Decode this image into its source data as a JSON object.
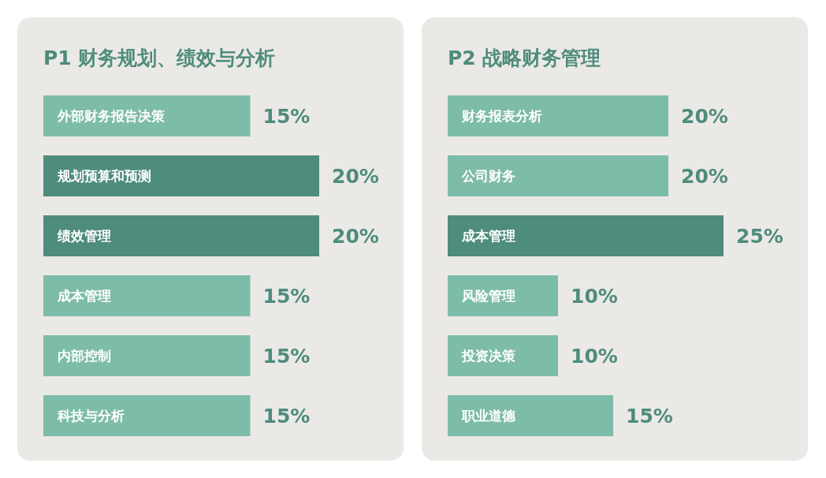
{
  "chart_data": [
    {
      "type": "bar",
      "orientation": "horizontal",
      "title": "P1 财务规划、绩效与分析",
      "categories": [
        "外部财务报告决策",
        "规划预算和预测",
        "绩效管理",
        "成本管理",
        "内部控制",
        "科技与分析"
      ],
      "values": [
        15,
        20,
        20,
        15,
        15,
        15
      ],
      "value_labels": [
        "15%",
        "20%",
        "20%",
        "15%",
        "15%",
        "15%"
      ],
      "colors": [
        "#7dbca8",
        "#4e8c7c",
        "#4e8c7c",
        "#7dbca8",
        "#7dbca8",
        "#7dbca8"
      ]
    },
    {
      "type": "bar",
      "orientation": "horizontal",
      "title": "P2 战略财务管理",
      "categories": [
        "财务报表分析",
        "公司财务",
        "成本管理",
        "风险管理",
        "投资决策",
        "职业道德"
      ],
      "values": [
        20,
        20,
        25,
        10,
        10,
        15
      ],
      "value_labels": [
        "20%",
        "20%",
        "25%",
        "10%",
        "10%",
        "15%"
      ],
      "colors": [
        "#7dbca8",
        "#7dbca8",
        "#4e8c7c",
        "#7dbca8",
        "#7dbca8",
        "#7dbca8"
      ]
    }
  ]
}
